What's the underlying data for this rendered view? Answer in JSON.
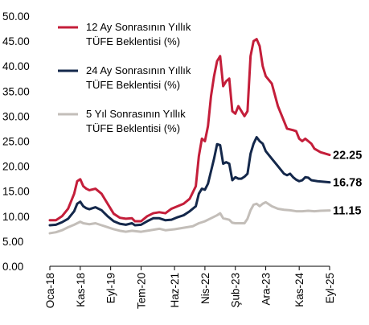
{
  "chart_data": {
    "type": "line",
    "title": "",
    "xlabel": "",
    "ylabel": "",
    "ylim": [
      0,
      50
    ],
    "y_ticks": [
      "0.00",
      "5.00",
      "10.00",
      "15.00",
      "20.00",
      "25.00",
      "30.00",
      "35.00",
      "40.00",
      "45.00",
      "50.00"
    ],
    "x_ticks": [
      "Oca-18",
      "Kas-18",
      "Eyl-19",
      "Tem-20",
      "Haz-21",
      "Nis-22",
      "Şub-23",
      "Ara-23",
      "Kas-24",
      "Eyl-25"
    ],
    "x_tick_dates": [
      "2018-01",
      "2018-11",
      "2019-09",
      "2020-07",
      "2021-06",
      "2022-04",
      "2023-02",
      "2023-12",
      "2024-11",
      "2025-09"
    ],
    "grid": false,
    "legend_position": "top-left",
    "series": [
      {
        "name": "12 Ay Sonrasının Yıllık TÜFE Beklentisi (%)",
        "color": "#c41e3a",
        "end_label": "22.25",
        "points": [
          [
            "2018-01",
            9.2
          ],
          [
            "2018-03",
            9.2
          ],
          [
            "2018-05",
            10.0
          ],
          [
            "2018-07",
            11.5
          ],
          [
            "2018-09",
            14.5
          ],
          [
            "2018-10",
            17.0
          ],
          [
            "2018-11",
            17.4
          ],
          [
            "2018-12",
            16.0
          ],
          [
            "2019-01",
            15.5
          ],
          [
            "2019-02",
            15.2
          ],
          [
            "2019-04",
            15.5
          ],
          [
            "2019-06",
            14.5
          ],
          [
            "2019-08",
            12.5
          ],
          [
            "2019-10",
            10.5
          ],
          [
            "2019-12",
            9.7
          ],
          [
            "2020-02",
            9.5
          ],
          [
            "2020-04",
            9.6
          ],
          [
            "2020-05",
            9.0
          ],
          [
            "2020-07",
            9.0
          ],
          [
            "2020-09",
            10.0
          ],
          [
            "2020-11",
            10.6
          ],
          [
            "2021-01",
            10.8
          ],
          [
            "2021-03",
            10.6
          ],
          [
            "2021-05",
            11.5
          ],
          [
            "2021-07",
            12.0
          ],
          [
            "2021-09",
            12.5
          ],
          [
            "2021-11",
            13.5
          ],
          [
            "2022-01",
            16.0
          ],
          [
            "2022-02",
            22.0
          ],
          [
            "2022-03",
            25.5
          ],
          [
            "2022-04",
            25.0
          ],
          [
            "2022-05",
            28.0
          ],
          [
            "2022-06",
            34.0
          ],
          [
            "2022-07",
            38.0
          ],
          [
            "2022-08",
            41.0
          ],
          [
            "2022-09",
            42.0
          ],
          [
            "2022-10",
            36.0
          ],
          [
            "2022-11",
            37.0
          ],
          [
            "2022-12",
            37.5
          ],
          [
            "2023-01",
            31.0
          ],
          [
            "2023-02",
            30.5
          ],
          [
            "2023-03",
            32.0
          ],
          [
            "2023-04",
            31.0
          ],
          [
            "2023-05",
            30.0
          ],
          [
            "2023-06",
            31.0
          ],
          [
            "2023-07",
            42.0
          ],
          [
            "2023-08",
            45.0
          ],
          [
            "2023-09",
            45.4
          ],
          [
            "2023-10",
            44.0
          ],
          [
            "2023-11",
            40.0
          ],
          [
            "2023-12",
            38.0
          ],
          [
            "2024-02",
            36.5
          ],
          [
            "2024-04",
            32.0
          ],
          [
            "2024-06",
            29.0
          ],
          [
            "2024-07",
            27.5
          ],
          [
            "2024-09",
            27.2
          ],
          [
            "2024-10",
            27.0
          ],
          [
            "2024-11",
            25.5
          ],
          [
            "2024-12",
            25.0
          ],
          [
            "2025-01",
            25.5
          ],
          [
            "2025-02",
            25.0
          ],
          [
            "2025-03",
            24.5
          ],
          [
            "2025-04",
            23.5
          ],
          [
            "2025-06",
            22.8
          ],
          [
            "2025-09",
            22.25
          ]
        ]
      },
      {
        "name": "24 Ay Sonrasının Yıllık TÜFE Beklentisi (%)",
        "color": "#14284b",
        "end_label": "16.78",
        "points": [
          [
            "2018-01",
            8.2
          ],
          [
            "2018-03",
            8.3
          ],
          [
            "2018-05",
            8.8
          ],
          [
            "2018-07",
            9.5
          ],
          [
            "2018-09",
            11.0
          ],
          [
            "2018-10",
            12.5
          ],
          [
            "2018-11",
            12.9
          ],
          [
            "2018-12",
            12.0
          ],
          [
            "2019-01",
            11.6
          ],
          [
            "2019-02",
            11.4
          ],
          [
            "2019-04",
            11.8
          ],
          [
            "2019-06",
            11.2
          ],
          [
            "2019-08",
            10.0
          ],
          [
            "2019-10",
            9.0
          ],
          [
            "2019-12",
            8.5
          ],
          [
            "2020-02",
            8.3
          ],
          [
            "2020-04",
            8.6
          ],
          [
            "2020-05",
            8.2
          ],
          [
            "2020-07",
            8.3
          ],
          [
            "2020-09",
            9.0
          ],
          [
            "2020-11",
            9.6
          ],
          [
            "2021-01",
            9.6
          ],
          [
            "2021-03",
            9.2
          ],
          [
            "2021-05",
            9.3
          ],
          [
            "2021-07",
            9.8
          ],
          [
            "2021-09",
            10.2
          ],
          [
            "2021-11",
            11.0
          ],
          [
            "2022-01",
            12.0
          ],
          [
            "2022-02",
            14.5
          ],
          [
            "2022-03",
            15.5
          ],
          [
            "2022-04",
            15.3
          ],
          [
            "2022-05",
            16.5
          ],
          [
            "2022-06",
            19.0
          ],
          [
            "2022-07",
            21.5
          ],
          [
            "2022-08",
            24.4
          ],
          [
            "2022-09",
            24.2
          ],
          [
            "2022-10",
            20.5
          ],
          [
            "2022-11",
            20.8
          ],
          [
            "2022-12",
            20.5
          ],
          [
            "2023-01",
            17.2
          ],
          [
            "2023-02",
            17.8
          ],
          [
            "2023-03",
            17.5
          ],
          [
            "2023-04",
            17.5
          ],
          [
            "2023-05",
            17.9
          ],
          [
            "2023-06",
            18.5
          ],
          [
            "2023-07",
            22.5
          ],
          [
            "2023-08",
            24.5
          ],
          [
            "2023-09",
            25.8
          ],
          [
            "2023-10",
            25.0
          ],
          [
            "2023-11",
            24.5
          ],
          [
            "2023-12",
            23.0
          ],
          [
            "2024-02",
            21.5
          ],
          [
            "2024-04",
            20.0
          ],
          [
            "2024-06",
            18.5
          ],
          [
            "2024-07",
            18.2
          ],
          [
            "2024-08",
            18.5
          ],
          [
            "2024-09",
            17.8
          ],
          [
            "2024-10",
            17.3
          ],
          [
            "2024-11",
            17.0
          ],
          [
            "2024-12",
            17.2
          ],
          [
            "2025-01",
            17.8
          ],
          [
            "2025-02",
            17.7
          ],
          [
            "2025-03",
            17.2
          ],
          [
            "2025-05",
            17.0
          ],
          [
            "2025-09",
            16.78
          ]
        ]
      },
      {
        "name": "5 Yıl Sonrasının Yıllık TÜFE Beklentisi (%)",
        "color": "#c3beb9",
        "end_label": "11.15",
        "points": [
          [
            "2018-01",
            6.6
          ],
          [
            "2018-03",
            6.8
          ],
          [
            "2018-05",
            7.2
          ],
          [
            "2018-07",
            7.8
          ],
          [
            "2018-09",
            8.3
          ],
          [
            "2018-11",
            8.9
          ],
          [
            "2018-12",
            8.6
          ],
          [
            "2019-02",
            8.4
          ],
          [
            "2019-04",
            8.6
          ],
          [
            "2019-06",
            8.2
          ],
          [
            "2019-08",
            7.8
          ],
          [
            "2019-10",
            7.4
          ],
          [
            "2019-12",
            7.1
          ],
          [
            "2020-02",
            6.9
          ],
          [
            "2020-04",
            7.1
          ],
          [
            "2020-07",
            6.9
          ],
          [
            "2020-10",
            7.2
          ],
          [
            "2021-01",
            7.5
          ],
          [
            "2021-03",
            7.2
          ],
          [
            "2021-06",
            7.4
          ],
          [
            "2021-09",
            7.7
          ],
          [
            "2021-12",
            8.0
          ],
          [
            "2022-02",
            8.6
          ],
          [
            "2022-04",
            9.0
          ],
          [
            "2022-06",
            9.6
          ],
          [
            "2022-08",
            10.2
          ],
          [
            "2022-09",
            10.6
          ],
          [
            "2022-10",
            9.6
          ],
          [
            "2022-12",
            9.3
          ],
          [
            "2023-01",
            8.7
          ],
          [
            "2023-02",
            8.6
          ],
          [
            "2023-03",
            8.6
          ],
          [
            "2023-05",
            8.6
          ],
          [
            "2023-06",
            9.5
          ],
          [
            "2023-07",
            11.2
          ],
          [
            "2023-08",
            12.3
          ],
          [
            "2023-09",
            12.5
          ],
          [
            "2023-10",
            12.0
          ],
          [
            "2023-11",
            12.5
          ],
          [
            "2023-12",
            12.8
          ],
          [
            "2024-02",
            12.0
          ],
          [
            "2024-04",
            11.5
          ],
          [
            "2024-06",
            11.3
          ],
          [
            "2024-08",
            11.2
          ],
          [
            "2024-10",
            11.0
          ],
          [
            "2024-12",
            11.0
          ],
          [
            "2025-02",
            11.1
          ],
          [
            "2025-04",
            11.0
          ],
          [
            "2025-06",
            11.1
          ],
          [
            "2025-09",
            11.15
          ]
        ]
      }
    ]
  }
}
